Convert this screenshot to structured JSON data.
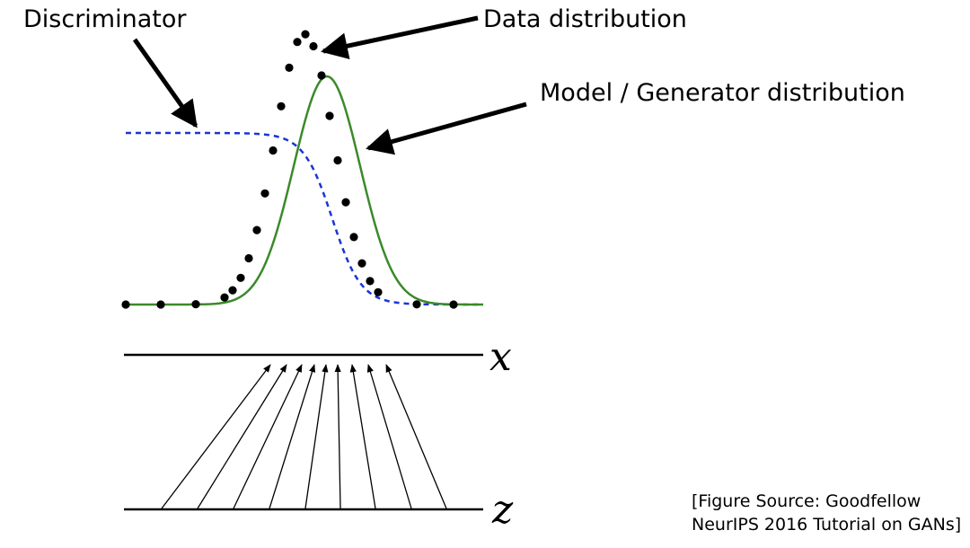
{
  "labels": {
    "discriminator": "Discriminator",
    "data_distribution": "Data distribution",
    "model_distribution": "Model / Generator distribution",
    "x_axis": "x",
    "z_axis": "z"
  },
  "source": {
    "line1": "[Figure Source: Goodfellow",
    "line2": "NeurIPS 2016 Tutorial on GANs]"
  },
  "colors": {
    "data_distribution": "#000000",
    "model_distribution": "#3a8a2a",
    "discriminator": "#1a35d6",
    "axes": "#000000",
    "mapping_arrows": "#000000"
  },
  "line_styles": {
    "data_distribution": "dotted",
    "model_distribution": "solid",
    "discriminator": "dashed"
  },
  "mapping_arrow_count": 9
}
